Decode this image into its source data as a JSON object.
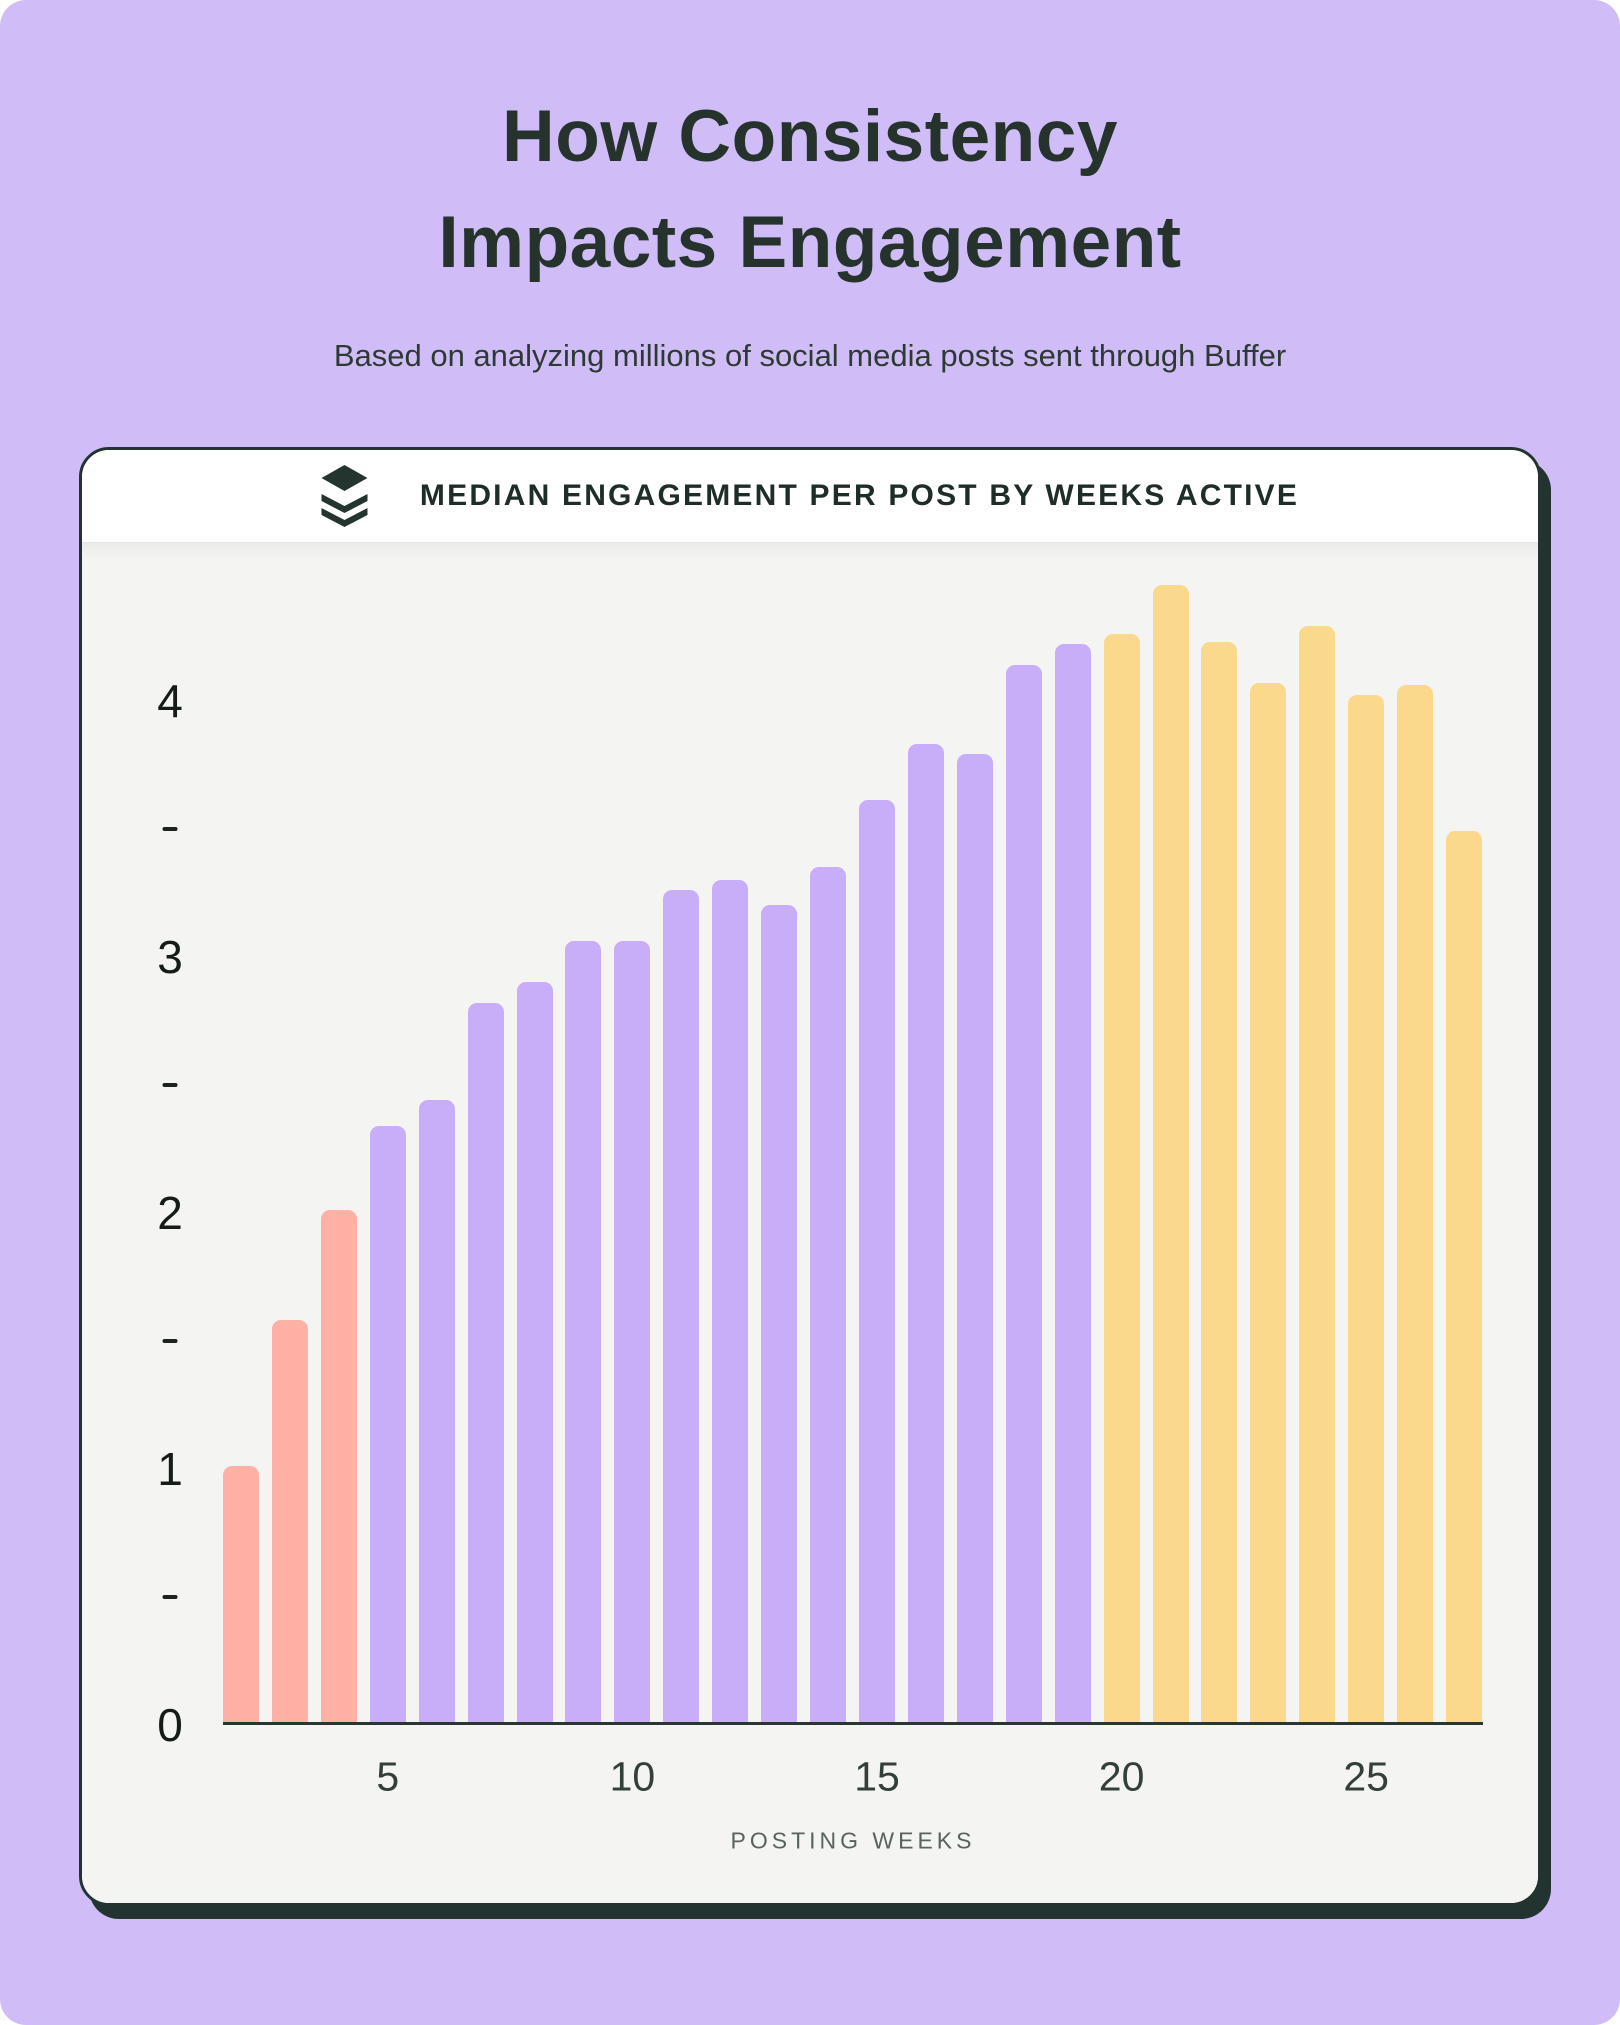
{
  "page": {
    "title_line1": "How Consistency",
    "title_line2": "Impacts Engagement",
    "subtitle": "Based on analyzing millions of social media posts sent through Buffer"
  },
  "card": {
    "icon_name": "buffer-logo-icon",
    "header_title": "MEDIAN ENGAGEMENT PER POST BY WEEKS ACTIVE"
  },
  "chart_data": {
    "type": "bar",
    "title": "MEDIAN ENGAGEMENT PER POST BY WEEKS ACTIVE",
    "xlabel": "POSTING WEEKS",
    "ylabel": "",
    "x": [
      2,
      3,
      4,
      5,
      6,
      7,
      8,
      9,
      10,
      11,
      12,
      13,
      14,
      15,
      16,
      17,
      18,
      19,
      20,
      21,
      22,
      23,
      24,
      25,
      26,
      27
    ],
    "values": [
      1.0,
      1.57,
      2.0,
      2.33,
      2.43,
      2.81,
      2.89,
      3.05,
      3.05,
      3.25,
      3.29,
      3.19,
      3.34,
      3.6,
      3.82,
      3.78,
      4.13,
      4.21,
      4.25,
      4.44,
      4.22,
      4.06,
      4.28,
      4.01,
      4.05,
      3.48
    ],
    "x_tick_labels": [
      5,
      10,
      15,
      20,
      25
    ],
    "y_tick_labels": [
      0,
      1,
      2,
      3,
      4
    ],
    "y_minor_ticks": [
      0.5,
      1.5,
      2.5,
      3.5
    ],
    "ylim": [
      0,
      4.6
    ],
    "grid": false,
    "legend_position": "none",
    "bar_color_segments": [
      {
        "from_week": 2,
        "to_week": 4,
        "color": "#ffb1a6",
        "name": "weeks-2-4-pink"
      },
      {
        "from_week": 5,
        "to_week": 19,
        "color": "#c8adf8",
        "name": "weeks-5-19-purple"
      },
      {
        "from_week": 20,
        "to_week": 27,
        "color": "#fad98d",
        "name": "weeks-20-27-yellow"
      }
    ]
  },
  "colors": {
    "page_bg": "#d0bdf8",
    "card_bg": "#f4f4f2",
    "header_bg": "#ffffff",
    "card_border": "#233430",
    "title_text": "#25332c",
    "axis_line": "#2a3631",
    "icon_color": "#243530"
  }
}
